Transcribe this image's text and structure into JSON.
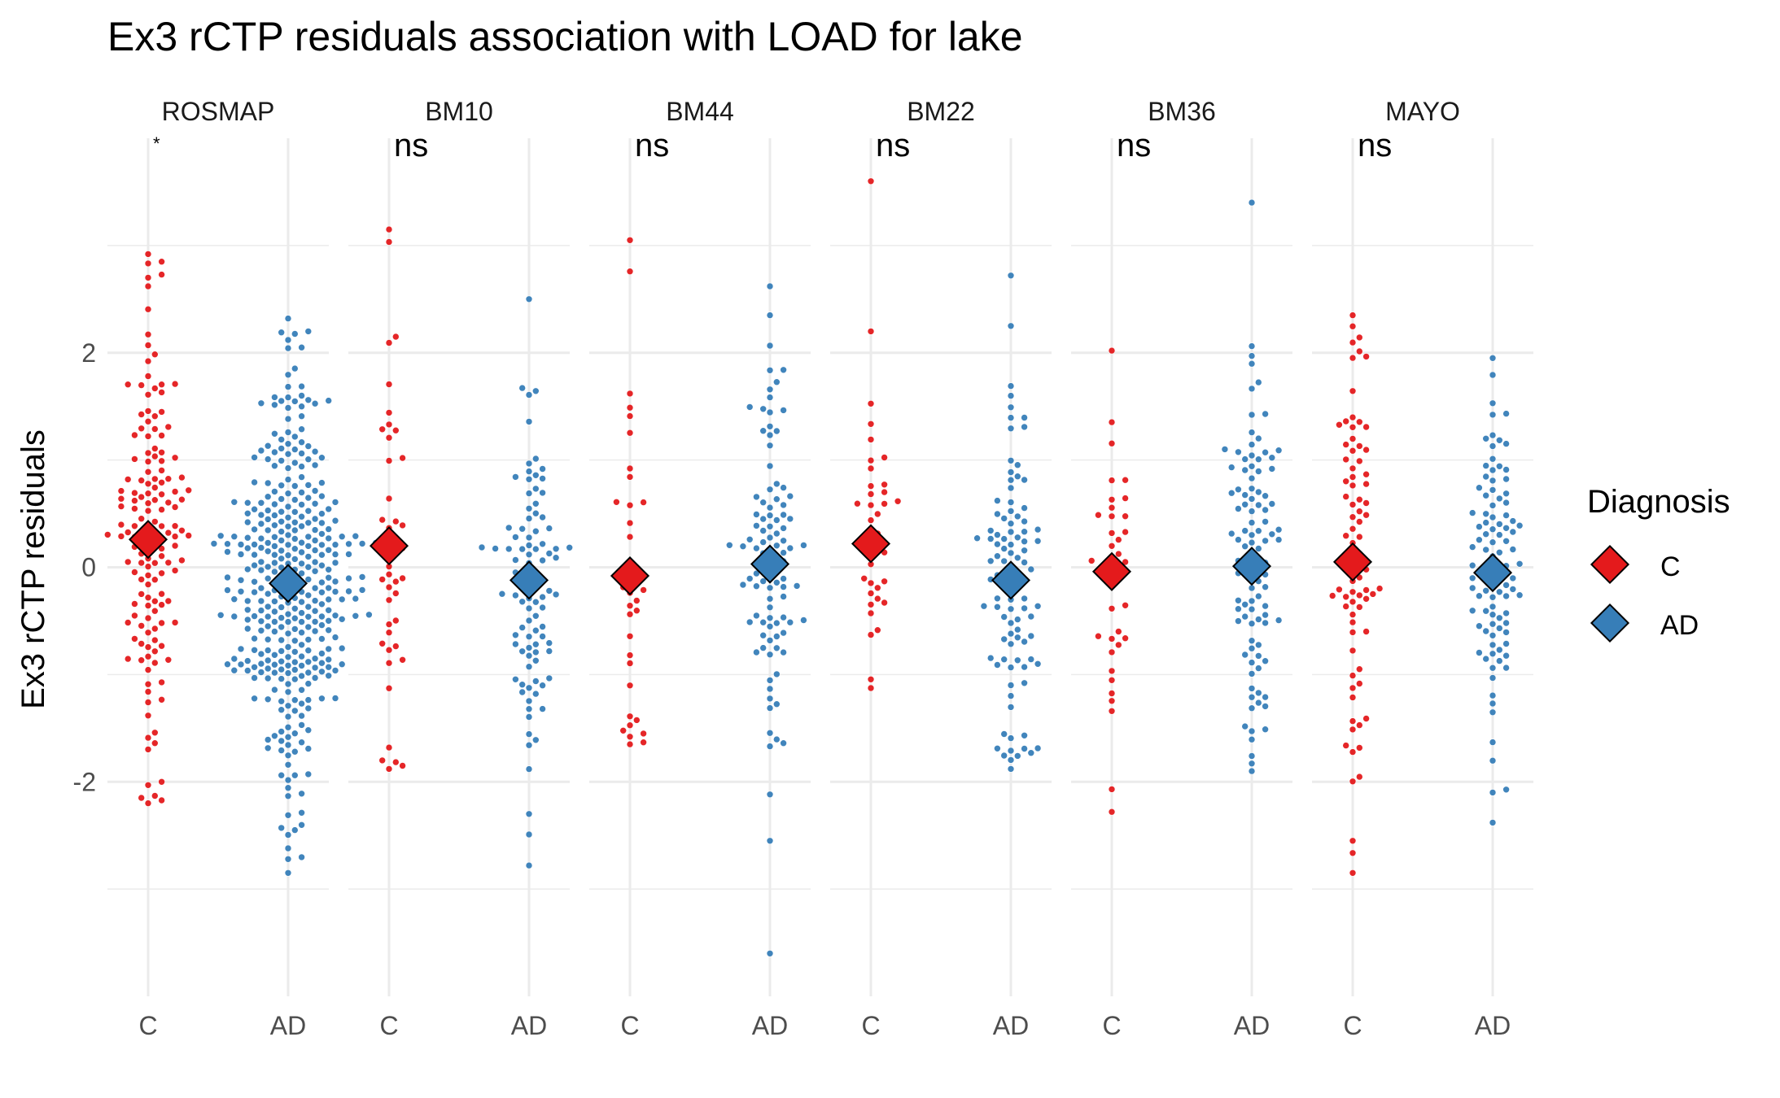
{
  "chart_data": {
    "type": "scatter",
    "title": "Ex3 rCTP residuals association with LOAD for lake",
    "ylabel": "Ex3 rCTP residuals",
    "xlabel": "",
    "ylim": [
      -4.0,
      4.0
    ],
    "y_ticks": [
      -2,
      0,
      2
    ],
    "categories": [
      "C",
      "AD"
    ],
    "grid": true,
    "legend": {
      "title": "Diagnosis",
      "position": "right",
      "entries": [
        {
          "label": "C",
          "color": "#E41A1C"
        },
        {
          "label": "AD",
          "color": "#377EB8"
        }
      ]
    },
    "panels": [
      {
        "name": "ROSMAP",
        "annotation": "*",
        "groups": [
          {
            "label": "C",
            "color": "#E41A1C",
            "mean": 0.26,
            "n": 150,
            "min": -2.2,
            "max": 2.92,
            "sd": 0.95,
            "outliers": [
              2.92,
              2.85,
              2.7,
              2.62,
              -2.0,
              -2.15,
              -2.2
            ]
          },
          {
            "label": "AD",
            "color": "#377EB8",
            "mean": -0.15,
            "n": 370,
            "min": -2.85,
            "max": 2.32,
            "sd": 0.95,
            "outliers": [
              2.32,
              2.2,
              -2.45,
              -2.62,
              -2.85
            ]
          }
        ]
      },
      {
        "name": "BM10",
        "annotation": "ns",
        "groups": [
          {
            "label": "C",
            "color": "#E41A1C",
            "mean": 0.2,
            "n": 42,
            "min": -1.88,
            "max": 3.15,
            "sd": 1.0,
            "outliers": [
              3.15,
              2.15,
              -1.8,
              -1.88
            ]
          },
          {
            "label": "AD",
            "color": "#377EB8",
            "mean": -0.12,
            "n": 95,
            "min": -2.78,
            "max": 2.5,
            "sd": 0.9,
            "outliers": [
              2.5,
              -2.3,
              -2.78
            ]
          }
        ]
      },
      {
        "name": "BM44",
        "annotation": "ns",
        "groups": [
          {
            "label": "C",
            "color": "#E41A1C",
            "mean": -0.08,
            "n": 35,
            "min": -1.65,
            "max": 3.05,
            "sd": 0.9,
            "outliers": [
              3.05,
              1.62,
              -1.55,
              -1.65
            ]
          },
          {
            "label": "AD",
            "color": "#377EB8",
            "mean": 0.03,
            "n": 100,
            "min": -3.6,
            "max": 2.62,
            "sd": 0.9,
            "outliers": [
              2.62,
              2.35,
              -2.55,
              -3.6
            ]
          }
        ]
      },
      {
        "name": "BM22",
        "annotation": "ns",
        "groups": [
          {
            "label": "C",
            "color": "#E41A1C",
            "mean": 0.22,
            "n": 36,
            "min": -1.2,
            "max": 3.6,
            "sd": 0.85,
            "outliers": [
              3.6,
              2.2
            ]
          },
          {
            "label": "AD",
            "color": "#377EB8",
            "mean": -0.12,
            "n": 100,
            "min": -1.88,
            "max": 2.72,
            "sd": 0.9,
            "outliers": [
              2.72,
              2.25,
              -1.88
            ]
          }
        ]
      },
      {
        "name": "BM36",
        "annotation": "ns",
        "groups": [
          {
            "label": "C",
            "color": "#E41A1C",
            "mean": -0.04,
            "n": 38,
            "min": -2.28,
            "max": 2.02,
            "sd": 0.95,
            "outliers": [
              2.02,
              -2.28
            ]
          },
          {
            "label": "AD",
            "color": "#377EB8",
            "mean": 0.01,
            "n": 100,
            "min": -1.9,
            "max": 3.4,
            "sd": 0.9,
            "outliers": [
              3.4,
              -1.9
            ]
          }
        ]
      },
      {
        "name": "MAYO",
        "annotation": "ns",
        "groups": [
          {
            "label": "C",
            "color": "#E41A1C",
            "mean": 0.05,
            "n": 80,
            "min": -2.85,
            "max": 2.35,
            "sd": 1.1,
            "outliers": [
              2.35,
              -2.55,
              -2.85
            ]
          },
          {
            "label": "AD",
            "color": "#377EB8",
            "mean": -0.05,
            "n": 100,
            "min": -2.38,
            "max": 1.95,
            "sd": 0.85,
            "outliers": [
              1.95,
              -2.1,
              -2.38
            ]
          }
        ]
      }
    ]
  }
}
